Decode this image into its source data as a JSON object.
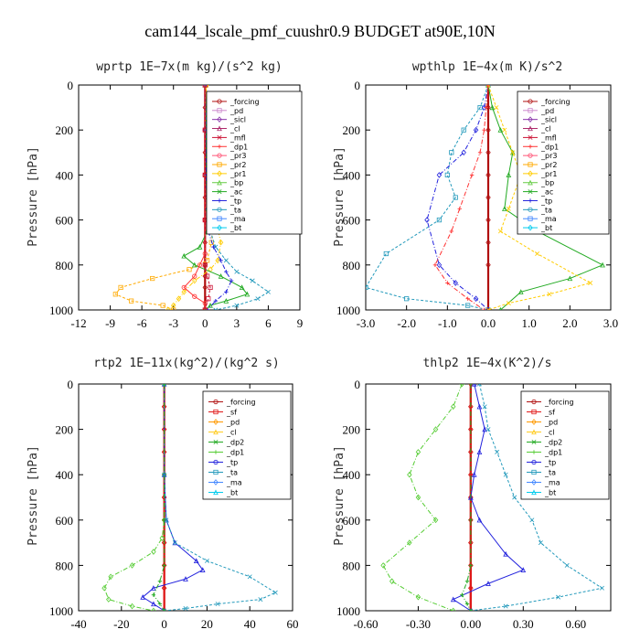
{
  "title": "cam144_lscale_pmf_cuushr0.9  BUDGET at90E,10N",
  "colors": {
    "forcing": "#b01010",
    "sf": "#e01818",
    "pd": "#cc88cc",
    "sicl": "#8833aa",
    "cl": "#aa2266",
    "mfl": "#cc1133",
    "dp1": "#ff3333",
    "dp2": "#22aa22",
    "pr3": "#ff5577",
    "pr2": "#ffaa00",
    "pr1": "#ffcc00",
    "bp": "#66cc44",
    "ac": "#22aa22",
    "tp": "#2222dd",
    "ta": "#2299bb",
    "ma": "#4488ff",
    "bt": "#00ccee",
    "pd2": "#ff9900",
    "cl2": "#ffcc22",
    "dp1b": "#55cc33"
  },
  "chart_data": [
    {
      "type": "line",
      "title": "wprtp   1E−7x(m kg)/(s^2 kg)",
      "ylabel": "Pressure [hPa]",
      "xlim": [
        -12,
        9
      ],
      "ylim": [
        1000,
        0
      ],
      "xticks": [
        "-12",
        "-9",
        "-6",
        "-3",
        "0",
        "3",
        "6",
        "9"
      ],
      "xtick_values": [
        -12,
        -9,
        -6,
        -3,
        0,
        3,
        6,
        9
      ],
      "yticks": [
        "0",
        "200",
        "400",
        "600",
        "800",
        "1000"
      ],
      "ytick_values": [
        0,
        200,
        400,
        600,
        800,
        1000
      ],
      "legend_position": "top-right",
      "legend": [
        "_forcing",
        "_pd",
        "_sicl",
        "_cl",
        "_mfl",
        "_dp1",
        "_pr3",
        "_pr2",
        "_pr1",
        "_bp",
        "_ac",
        "_tp",
        "_ta",
        "_ma",
        "_bt"
      ],
      "series": [
        {
          "name": "_forcing",
          "key": "forcing",
          "x": [
            0,
            0,
            0,
            0,
            0,
            0,
            0,
            0,
            0,
            0,
            0,
            0
          ],
          "y": [
            0,
            100,
            200,
            300,
            400,
            500,
            600,
            700,
            800,
            850,
            900,
            1000
          ]
        },
        {
          "name": "_pr2",
          "key": "pr2",
          "x": [
            0.1,
            0.2,
            0.4,
            0.6,
            0.8,
            0.6,
            0.2,
            -1.5,
            -5,
            -8,
            -8.5,
            -7,
            -4,
            -3
          ],
          "y": [
            0,
            150,
            300,
            450,
            600,
            700,
            780,
            820,
            860,
            900,
            930,
            960,
            980,
            1000
          ]
        },
        {
          "name": "_pr1",
          "key": "pr1",
          "x": [
            0.1,
            0.2,
            0.5,
            0.8,
            1,
            1.5,
            1.2,
            0.5,
            -1,
            -2,
            -2.5,
            -3,
            -3.5
          ],
          "y": [
            0,
            150,
            300,
            450,
            600,
            700,
            780,
            820,
            870,
            920,
            950,
            980,
            1000
          ]
        },
        {
          "name": "_ac",
          "key": "ac",
          "x": [
            0,
            0.1,
            0.1,
            0.2,
            0.2,
            -0.5,
            -2,
            -1,
            1.5,
            3.5,
            4,
            2,
            0.5,
            0
          ],
          "y": [
            0,
            200,
            400,
            550,
            650,
            720,
            760,
            800,
            850,
            900,
            930,
            960,
            980,
            1000
          ]
        },
        {
          "name": "_ta",
          "key": "ta",
          "x": [
            0,
            0.1,
            0.2,
            0.4,
            0.5,
            1,
            2,
            3,
            4.5,
            6,
            5,
            3,
            1
          ],
          "y": [
            0,
            200,
            400,
            550,
            650,
            720,
            780,
            830,
            870,
            920,
            950,
            980,
            1000
          ]
        },
        {
          "name": "_tp",
          "key": "tp",
          "x": [
            0,
            0,
            0.1,
            0.2,
            0.3,
            0.8,
            1.5,
            2,
            2.5,
            2,
            1,
            0.2
          ],
          "y": [
            0,
            200,
            400,
            550,
            650,
            720,
            780,
            830,
            870,
            920,
            960,
            1000
          ]
        },
        {
          "name": "_dp1",
          "key": "dp1",
          "x": [
            0,
            0,
            0,
            0,
            0,
            -0.5,
            -1,
            -2,
            -1,
            0,
            0
          ],
          "y": [
            0,
            200,
            400,
            600,
            750,
            800,
            850,
            900,
            940,
            970,
            1000
          ]
        },
        {
          "name": "_mfl",
          "key": "mfl",
          "x": [
            0,
            0,
            0,
            0,
            0,
            0.2,
            0.5,
            0.3,
            0
          ],
          "y": [
            0,
            200,
            400,
            600,
            800,
            850,
            900,
            950,
            1000
          ]
        }
      ]
    },
    {
      "type": "line",
      "title": "wpthlp   1E−4x(m K)/s^2",
      "ylabel": "Pressure [hPa]",
      "xlim": [
        -3.0,
        3.0
      ],
      "ylim": [
        1000,
        0
      ],
      "xticks": [
        "-3.0",
        "-2.0",
        "-1.0",
        "0.0",
        "1.0",
        "2.0",
        "3.0"
      ],
      "xtick_values": [
        -3,
        -2,
        -1,
        0,
        1,
        2,
        3
      ],
      "yticks": [
        "0",
        "200",
        "400",
        "600",
        "800",
        "1000"
      ],
      "ytick_values": [
        0,
        200,
        400,
        600,
        800,
        1000
      ],
      "legend_position": "top-right",
      "legend": [
        "_forcing",
        "_pd",
        "_sicl",
        "_cl",
        "_mfl",
        "_dp1",
        "_pr3",
        "_pr2",
        "_pr1",
        "_bp",
        "_ac",
        "_tp",
        "_ta",
        "_ma",
        "_bt"
      ],
      "series": [
        {
          "name": "_forcing",
          "key": "forcing",
          "x": [
            0,
            0,
            0,
            0,
            0,
            0,
            0,
            0,
            0,
            0
          ],
          "y": [
            0,
            100,
            200,
            300,
            400,
            500,
            600,
            700,
            800,
            1000
          ]
        },
        {
          "name": "_ta",
          "key": "ta",
          "x": [
            0,
            -0.2,
            -0.6,
            -0.9,
            -1,
            -0.8,
            -1.2,
            -2.5,
            -3,
            -2,
            -0.5,
            0
          ],
          "y": [
            0,
            100,
            200,
            300,
            400,
            500,
            600,
            750,
            900,
            950,
            980,
            1000
          ]
        },
        {
          "name": "_tp",
          "key": "tp",
          "x": [
            0,
            -0.1,
            -0.3,
            -0.6,
            -1.2,
            -1.5,
            -1.2,
            -0.8,
            -0.3,
            0
          ],
          "y": [
            0,
            100,
            200,
            300,
            400,
            600,
            800,
            880,
            950,
            1000
          ]
        },
        {
          "name": "_ac",
          "key": "ac",
          "x": [
            0,
            0.1,
            0.3,
            0.6,
            0.5,
            0.4,
            1.2,
            2.8,
            2,
            0.8,
            0.3
          ],
          "y": [
            0,
            100,
            200,
            300,
            400,
            550,
            650,
            800,
            860,
            920,
            1000
          ]
        },
        {
          "name": "_pr1",
          "key": "pr1",
          "x": [
            0,
            0.2,
            0.4,
            0.6,
            0.8,
            0.5,
            0.3,
            1.2,
            2.5,
            1.5,
            0.5,
            0
          ],
          "y": [
            0,
            100,
            200,
            300,
            400,
            550,
            650,
            750,
            880,
            930,
            970,
            1000
          ]
        },
        {
          "name": "_dp1",
          "key": "dp1",
          "x": [
            0,
            -0.05,
            -0.1,
            -0.2,
            -0.4,
            -0.7,
            -0.9,
            -1.3,
            -1,
            -0.5,
            -0.1
          ],
          "y": [
            0,
            100,
            200,
            300,
            400,
            550,
            650,
            800,
            880,
            950,
            1000
          ]
        }
      ]
    },
    {
      "type": "line",
      "title": "rtp2   1E−11x(kg^2)/(kg^2 s)",
      "ylabel": "Pressure [hPa]",
      "xlim": [
        -40,
        60
      ],
      "ylim": [
        1000,
        0
      ],
      "xticks": [
        "-40",
        "-20",
        "0",
        "20",
        "40",
        "60"
      ],
      "xtick_values": [
        -40,
        -20,
        0,
        20,
        40,
        60
      ],
      "yticks": [
        "0",
        "200",
        "400",
        "600",
        "800",
        "1000"
      ],
      "ytick_values": [
        0,
        200,
        400,
        600,
        800,
        1000
      ],
      "legend_position": "top-right",
      "legend": [
        "_forcing",
        "_sf",
        "_pd",
        "_cl",
        "_dp2",
        "_dp1",
        "_tp",
        "_ta",
        "_ma",
        "_bt"
      ],
      "series": [
        {
          "name": "_forcing",
          "key": "forcing",
          "x": [
            0,
            0,
            0,
            0,
            0,
            0,
            0,
            0,
            0,
            0,
            0
          ],
          "y": [
            0,
            100,
            200,
            300,
            400,
            500,
            600,
            700,
            800,
            900,
            1000
          ]
        },
        {
          "name": "_sf",
          "key": "sf",
          "x": [
            0,
            0,
            0,
            0,
            0,
            0,
            0,
            0,
            0,
            0,
            0
          ],
          "y": [
            0,
            100,
            200,
            300,
            400,
            500,
            600,
            700,
            800,
            900,
            1000
          ]
        },
        {
          "name": "_dp1",
          "key": "dp1b",
          "x": [
            0,
            0,
            0,
            -1,
            -5,
            -15,
            -25,
            -28,
            -26,
            -15,
            -5
          ],
          "y": [
            0,
            400,
            600,
            680,
            740,
            800,
            850,
            900,
            950,
            980,
            1000
          ]
        },
        {
          "name": "_tp",
          "key": "tp",
          "x": [
            0,
            0,
            1,
            5,
            15,
            18,
            10,
            -5,
            -10,
            -5,
            0
          ],
          "y": [
            0,
            400,
            600,
            700,
            780,
            820,
            860,
            900,
            940,
            970,
            1000
          ]
        },
        {
          "name": "_ta",
          "key": "ta",
          "x": [
            0,
            0,
            1,
            5,
            20,
            40,
            52,
            45,
            25,
            10,
            0
          ],
          "y": [
            0,
            400,
            600,
            700,
            780,
            850,
            920,
            950,
            970,
            990,
            1000
          ]
        },
        {
          "name": "_dp2",
          "key": "dp2",
          "x": [
            0,
            0,
            0,
            -2,
            -5,
            -2,
            0
          ],
          "y": [
            0,
            600,
            800,
            870,
            930,
            970,
            1000
          ]
        }
      ]
    },
    {
      "type": "line",
      "title": "thlp2   1E−4x(K^2)/s",
      "ylabel": "Pressure [hPa]",
      "xlim": [
        -0.6,
        0.8
      ],
      "ylim": [
        1000,
        0
      ],
      "xticks": [
        "-0.60",
        "-0.30",
        "0.00",
        "0.30",
        "0.60"
      ],
      "xtick_values": [
        -0.6,
        -0.3,
        0,
        0.3,
        0.6
      ],
      "yticks": [
        "0",
        "200",
        "400",
        "600",
        "800",
        "1000"
      ],
      "ytick_values": [
        0,
        200,
        400,
        600,
        800,
        1000
      ],
      "legend_position": "top-right",
      "legend": [
        "_forcing",
        "_sf",
        "_pd",
        "_cl",
        "_dp2",
        "_dp1",
        "_tp",
        "_ta",
        "_ma",
        "_bt"
      ],
      "series": [
        {
          "name": "_forcing",
          "key": "forcing",
          "x": [
            0,
            0,
            0,
            0,
            0,
            0,
            0,
            0,
            0,
            0,
            0
          ],
          "y": [
            0,
            100,
            200,
            300,
            400,
            500,
            600,
            700,
            800,
            900,
            1000
          ]
        },
        {
          "name": "_sf",
          "key": "sf",
          "x": [
            0,
            0,
            0,
            0,
            0,
            0,
            0,
            0,
            0,
            0,
            0
          ],
          "y": [
            0,
            100,
            200,
            300,
            400,
            500,
            600,
            700,
            800,
            900,
            1000
          ]
        },
        {
          "name": "_dp1",
          "key": "dp1b",
          "x": [
            -0.05,
            -0.1,
            -0.2,
            -0.3,
            -0.35,
            -0.3,
            -0.2,
            -0.35,
            -0.5,
            -0.45,
            -0.3,
            -0.1
          ],
          "y": [
            0,
            100,
            200,
            300,
            400,
            500,
            600,
            700,
            800,
            870,
            940,
            1000
          ]
        },
        {
          "name": "_tp",
          "key": "tp",
          "x": [
            0.02,
            0.05,
            0.08,
            0.05,
            0.02,
            0,
            0.05,
            0.2,
            0.3,
            0.1,
            -0.1,
            0
          ],
          "y": [
            0,
            100,
            200,
            300,
            400,
            500,
            600,
            750,
            820,
            880,
            950,
            1000
          ]
        },
        {
          "name": "_ta",
          "key": "ta",
          "x": [
            0.05,
            0.08,
            0.1,
            0.15,
            0.2,
            0.25,
            0.35,
            0.4,
            0.55,
            0.75,
            0.5,
            0.2,
            0
          ],
          "y": [
            0,
            100,
            200,
            300,
            400,
            500,
            600,
            700,
            800,
            900,
            940,
            980,
            1000
          ]
        },
        {
          "name": "_dp2",
          "key": "dp2",
          "x": [
            0,
            0,
            0,
            -0.02,
            -0.05,
            -0.02,
            0
          ],
          "y": [
            0,
            600,
            800,
            870,
            930,
            970,
            1000
          ]
        }
      ]
    }
  ]
}
